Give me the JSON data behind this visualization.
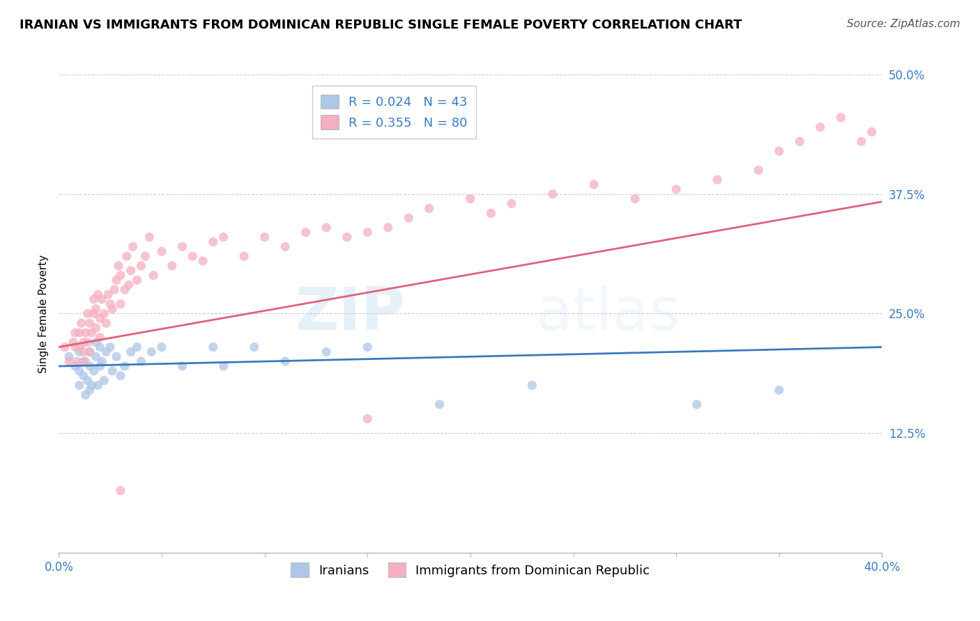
{
  "title": "IRANIAN VS IMMIGRANTS FROM DOMINICAN REPUBLIC SINGLE FEMALE POVERTY CORRELATION CHART",
  "source": "Source: ZipAtlas.com",
  "ylabel": "Single Female Poverty",
  "yticks": [
    0.0,
    0.125,
    0.25,
    0.375,
    0.5
  ],
  "ytick_labels": [
    "",
    "12.5%",
    "25.0%",
    "37.5%",
    "50.0%"
  ],
  "xlim": [
    0.0,
    0.4
  ],
  "ylim": [
    0.0,
    0.5
  ],
  "background_color": "#ffffff",
  "grid_color": "#cccccc",
  "watermark_text": "ZIP",
  "watermark_text2": "atlas",
  "series": [
    {
      "name": "Iranians",
      "R": 0.024,
      "N": 43,
      "color": "#aec6e8",
      "line_color": "#3a7abf",
      "x": [
        0.005,
        0.008,
        0.01,
        0.01,
        0.01,
        0.012,
        0.012,
        0.013,
        0.014,
        0.015,
        0.015,
        0.015,
        0.016,
        0.017,
        0.018,
        0.018,
        0.019,
        0.02,
        0.02,
        0.021,
        0.022,
        0.023,
        0.025,
        0.026,
        0.028,
        0.03,
        0.032,
        0.035,
        0.038,
        0.04,
        0.045,
        0.05,
        0.06,
        0.075,
        0.08,
        0.095,
        0.11,
        0.13,
        0.15,
        0.185,
        0.23,
        0.31,
        0.35
      ],
      "y": [
        0.205,
        0.195,
        0.175,
        0.19,
        0.21,
        0.185,
        0.2,
        0.165,
        0.18,
        0.17,
        0.195,
        0.21,
        0.175,
        0.19,
        0.205,
        0.22,
        0.175,
        0.195,
        0.215,
        0.2,
        0.18,
        0.21,
        0.215,
        0.19,
        0.205,
        0.185,
        0.195,
        0.21,
        0.215,
        0.2,
        0.21,
        0.215,
        0.195,
        0.215,
        0.195,
        0.215,
        0.2,
        0.21,
        0.215,
        0.155,
        0.175,
        0.155,
        0.17
      ]
    },
    {
      "name": "Immigrants from Dominican Republic",
      "R": 0.355,
      "N": 80,
      "color": "#f4afc0",
      "line_color": "#e0607a",
      "x": [
        0.003,
        0.005,
        0.007,
        0.008,
        0.008,
        0.009,
        0.01,
        0.01,
        0.011,
        0.012,
        0.012,
        0.013,
        0.013,
        0.014,
        0.014,
        0.015,
        0.015,
        0.016,
        0.017,
        0.017,
        0.018,
        0.018,
        0.019,
        0.02,
        0.02,
        0.021,
        0.022,
        0.023,
        0.024,
        0.025,
        0.026,
        0.027,
        0.028,
        0.029,
        0.03,
        0.03,
        0.032,
        0.033,
        0.034,
        0.035,
        0.036,
        0.038,
        0.04,
        0.042,
        0.044,
        0.046,
        0.05,
        0.055,
        0.06,
        0.065,
        0.07,
        0.075,
        0.08,
        0.09,
        0.1,
        0.11,
        0.12,
        0.13,
        0.14,
        0.15,
        0.16,
        0.17,
        0.18,
        0.2,
        0.21,
        0.22,
        0.24,
        0.26,
        0.28,
        0.3,
        0.32,
        0.34,
        0.35,
        0.36,
        0.37,
        0.38,
        0.39,
        0.395,
        0.03,
        0.15
      ],
      "y": [
        0.215,
        0.2,
        0.22,
        0.23,
        0.215,
        0.2,
        0.215,
        0.23,
        0.24,
        0.21,
        0.22,
        0.2,
        0.23,
        0.22,
        0.25,
        0.21,
        0.24,
        0.23,
        0.25,
        0.265,
        0.235,
        0.255,
        0.27,
        0.225,
        0.245,
        0.265,
        0.25,
        0.24,
        0.27,
        0.26,
        0.255,
        0.275,
        0.285,
        0.3,
        0.26,
        0.29,
        0.275,
        0.31,
        0.28,
        0.295,
        0.32,
        0.285,
        0.3,
        0.31,
        0.33,
        0.29,
        0.315,
        0.3,
        0.32,
        0.31,
        0.305,
        0.325,
        0.33,
        0.31,
        0.33,
        0.32,
        0.335,
        0.34,
        0.33,
        0.335,
        0.34,
        0.35,
        0.36,
        0.37,
        0.355,
        0.365,
        0.375,
        0.385,
        0.37,
        0.38,
        0.39,
        0.4,
        0.42,
        0.43,
        0.445,
        0.455,
        0.43,
        0.44,
        0.065,
        0.14
      ]
    }
  ],
  "title_fontsize": 13,
  "axis_label_fontsize": 11,
  "tick_fontsize": 12,
  "legend_fontsize": 13,
  "source_fontsize": 11,
  "scatter_size": 90,
  "scatter_alpha": 0.75,
  "line_width": 2.0
}
